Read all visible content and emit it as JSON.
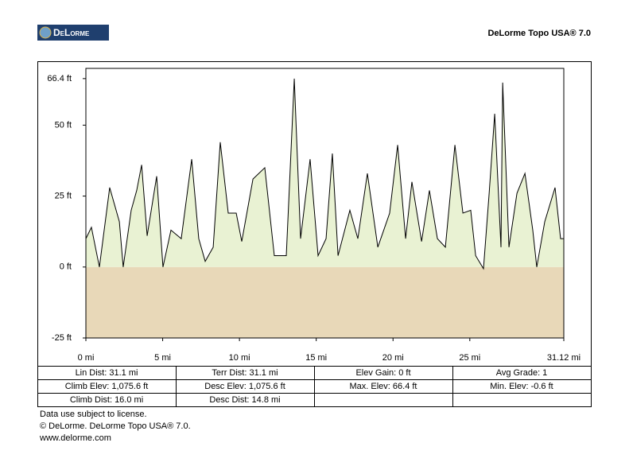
{
  "header": {
    "logo": "DeLorme",
    "title": "DeLorme Topo USA® 7.0"
  },
  "chart_data": {
    "type": "area",
    "color": "#000000",
    "fill": "#e9f2d3",
    "below_fill": "#e8d8b8",
    "x": [
      0,
      0.36,
      0.88,
      1.55,
      2.18,
      2.43,
      2.95,
      3.31,
      3.63,
      3.99,
      4.61,
      5.02,
      5.54,
      6.21,
      6.89,
      7.35,
      7.77,
      8.29,
      8.75,
      9.27,
      9.79,
      10.15,
      10.88,
      11.65,
      12.27,
      13.05,
      13.57,
      13.98,
      14.6,
      15.12,
      15.64,
      16.05,
      16.42,
      17.19,
      17.71,
      18.33,
      19.01,
      19.78,
      20.3,
      20.82,
      21.23,
      21.86,
      22.37,
      22.89,
      23.41,
      24.03,
      24.55,
      25.06,
      25.38,
      25.89,
      26.26,
      26.62,
      27.03,
      27.14,
      27.55,
      28.07,
      28.59,
      29.1,
      29.36,
      29.88,
      30.55,
      30.91,
      31.12
    ],
    "values": [
      10,
      14,
      0,
      28,
      16,
      0,
      20,
      27,
      36,
      11,
      32,
      0,
      13,
      10,
      38,
      10,
      2,
      7,
      44,
      19,
      19,
      9,
      31,
      35,
      4,
      4,
      66.4,
      10,
      38,
      4,
      10,
      40,
      4,
      20,
      10,
      33,
      7,
      19,
      43,
      10,
      30,
      9,
      27,
      10,
      7,
      43,
      19,
      20,
      4,
      -0.6,
      26,
      54,
      7,
      65,
      7,
      26,
      33,
      13,
      0,
      16,
      28,
      10,
      10
    ],
    "xlim": [
      0,
      31.12
    ],
    "ylim": [
      -25,
      70
    ],
    "xticks": [
      {
        "value": 0,
        "label": "0 mi"
      },
      {
        "value": 5,
        "label": "5 mi"
      },
      {
        "value": 10,
        "label": "10 mi"
      },
      {
        "value": 15,
        "label": "15 mi"
      },
      {
        "value": 20,
        "label": "20 mi"
      },
      {
        "value": 25,
        "label": "25 mi"
      },
      {
        "value": 31.12,
        "label": "31.12 mi"
      }
    ],
    "yticks": [
      {
        "value": -25,
        "label": "-25 ft"
      },
      {
        "value": 0,
        "label": "0 ft"
      },
      {
        "value": 25,
        "label": "25 ft"
      },
      {
        "value": 50,
        "label": "50 ft"
      },
      {
        "value": 66.4,
        "label": "66.4 ft"
      }
    ]
  },
  "table": {
    "rows": [
      [
        "Lin Dist:  31.1 mi",
        "Terr Dist:  31.1 mi",
        "Elev Gain:  0 ft",
        "Avg Grade:  1"
      ],
      [
        "Climb Elev:  1,075.6 ft",
        "Desc Elev:  1,075.6 ft",
        "Max. Elev:  66.4 ft",
        "Min. Elev:  -0.6 ft"
      ],
      [
        "Climb Dist:  16.0 mi",
        "Desc Dist:  14.8 mi"
      ]
    ]
  },
  "footer": [
    "Data use subject to license.",
    "© DeLorme. DeLorme Topo USA® 7.0.",
    "www.delorme.com"
  ]
}
